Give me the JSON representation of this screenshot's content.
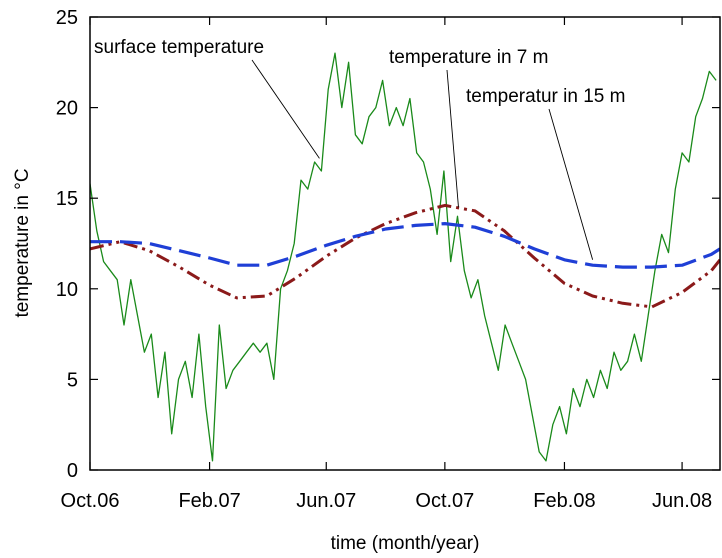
{
  "chart_data": {
    "type": "line",
    "xlabel": "time (month/year)",
    "ylabel": "temperature in °C",
    "xlim": [
      "2006-10-01",
      "2008-07-10"
    ],
    "ylim": [
      0,
      25
    ],
    "x_tick_values": [
      "2006-10-01",
      "2007-02-01",
      "2007-06-01",
      "2007-10-01",
      "2008-02-01",
      "2008-06-01"
    ],
    "x_tick_labels": [
      "Oct.06",
      "Feb.07",
      "Jun.07",
      "Oct.07",
      "Feb.08",
      "Jun.08"
    ],
    "y_ticks": [
      0,
      5,
      10,
      15,
      20,
      25
    ],
    "grid": false,
    "legend": "none",
    "series": [
      {
        "name": "surface temperature",
        "color": "#1a8a1a",
        "style": "solid",
        "x": [
          "2006-10-01",
          "2006-10-08",
          "2006-10-15",
          "2006-10-22",
          "2006-10-29",
          "2006-11-05",
          "2006-11-12",
          "2006-11-19",
          "2006-11-26",
          "2006-12-03",
          "2006-12-10",
          "2006-12-17",
          "2006-12-24",
          "2006-12-31",
          "2007-01-07",
          "2007-01-14",
          "2007-01-21",
          "2007-01-28",
          "2007-02-04",
          "2007-02-11",
          "2007-02-18",
          "2007-02-25",
          "2007-03-04",
          "2007-03-11",
          "2007-03-18",
          "2007-03-25",
          "2007-04-01",
          "2007-04-08",
          "2007-04-15",
          "2007-04-22",
          "2007-04-29",
          "2007-05-06",
          "2007-05-13",
          "2007-05-20",
          "2007-05-27",
          "2007-06-03",
          "2007-06-10",
          "2007-06-17",
          "2007-06-24",
          "2007-07-01",
          "2007-07-08",
          "2007-07-15",
          "2007-07-22",
          "2007-07-29",
          "2007-08-05",
          "2007-08-12",
          "2007-08-19",
          "2007-08-26",
          "2007-09-02",
          "2007-09-09",
          "2007-09-16",
          "2007-09-23",
          "2007-09-30",
          "2007-10-07",
          "2007-10-14",
          "2007-10-21",
          "2007-10-28",
          "2007-11-04",
          "2007-11-11",
          "2007-11-18",
          "2007-11-25",
          "2007-12-02",
          "2007-12-09",
          "2007-12-16",
          "2007-12-23",
          "2007-12-30",
          "2008-01-06",
          "2008-01-13",
          "2008-01-20",
          "2008-01-27",
          "2008-02-03",
          "2008-02-10",
          "2008-02-17",
          "2008-02-24",
          "2008-03-02",
          "2008-03-09",
          "2008-03-16",
          "2008-03-23",
          "2008-03-30",
          "2008-04-06",
          "2008-04-13",
          "2008-04-20",
          "2008-04-27",
          "2008-05-04",
          "2008-05-11",
          "2008-05-18",
          "2008-05-25",
          "2008-06-01",
          "2008-06-08",
          "2008-06-15",
          "2008-06-22",
          "2008-06-29",
          "2008-07-06"
        ],
        "values": [
          15.8,
          13.2,
          11.5,
          11.0,
          10.5,
          8.0,
          10.5,
          8.5,
          6.5,
          7.5,
          4.0,
          6.5,
          2.0,
          5.0,
          6.0,
          4.0,
          7.5,
          3.5,
          0.5,
          8.0,
          4.5,
          5.5,
          6.0,
          6.5,
          7.0,
          6.5,
          7.0,
          5.0,
          10.0,
          11.0,
          12.5,
          16.0,
          15.5,
          17.0,
          16.5,
          21.0,
          23.0,
          20.0,
          22.5,
          18.5,
          18.0,
          19.5,
          20.0,
          21.5,
          19.0,
          20.0,
          19.0,
          20.5,
          17.5,
          17.0,
          15.5,
          13.0,
          16.5,
          11.5,
          14.0,
          11.0,
          9.5,
          10.5,
          8.5,
          7.0,
          5.5,
          8.0,
          7.0,
          6.0,
          5.0,
          3.0,
          1.0,
          0.5,
          2.5,
          3.5,
          2.0,
          4.5,
          3.5,
          5.0,
          4.0,
          5.5,
          4.5,
          6.5,
          5.5,
          6.0,
          7.5,
          6.0,
          8.5,
          11.0,
          13.0,
          12.0,
          15.5,
          17.5,
          17.0,
          19.5,
          20.5,
          22.0,
          21.5
        ]
      },
      {
        "name": "temperature in 7 m",
        "color": "#8b1a1a",
        "style": "dash-dot",
        "x": [
          "2006-10-01",
          "2006-11-01",
          "2006-12-01",
          "2007-01-01",
          "2007-02-01",
          "2007-03-01",
          "2007-04-01",
          "2007-05-01",
          "2007-06-01",
          "2007-07-01",
          "2007-08-01",
          "2007-09-01",
          "2007-10-01",
          "2007-11-01",
          "2007-12-01",
          "2008-01-01",
          "2008-02-01",
          "2008-03-01",
          "2008-04-01",
          "2008-05-01",
          "2008-06-01",
          "2008-07-01",
          "2008-07-10"
        ],
        "values": [
          12.2,
          12.6,
          12.1,
          11.2,
          10.2,
          9.5,
          9.6,
          10.6,
          11.8,
          12.8,
          13.6,
          14.2,
          14.6,
          14.3,
          13.2,
          11.7,
          10.3,
          9.6,
          9.2,
          9.0,
          9.8,
          11.0,
          11.6
        ]
      },
      {
        "name": "temperatur in 15 m",
        "color": "#1f3fd6",
        "style": "dashed",
        "x": [
          "2006-10-01",
          "2006-11-01",
          "2006-12-01",
          "2007-01-01",
          "2007-02-01",
          "2007-03-01",
          "2007-04-01",
          "2007-05-01",
          "2007-06-01",
          "2007-07-01",
          "2007-08-01",
          "2007-09-01",
          "2007-10-01",
          "2007-11-01",
          "2007-12-01",
          "2008-01-01",
          "2008-02-01",
          "2008-03-01",
          "2008-04-01",
          "2008-05-01",
          "2008-06-01",
          "2008-07-01",
          "2008-07-10"
        ],
        "values": [
          12.6,
          12.6,
          12.5,
          12.1,
          11.7,
          11.3,
          11.3,
          11.8,
          12.4,
          12.9,
          13.3,
          13.5,
          13.6,
          13.4,
          12.9,
          12.2,
          11.6,
          11.3,
          11.2,
          11.2,
          11.3,
          11.9,
          12.2
        ]
      }
    ],
    "annotations": [
      {
        "text": "surface temperature",
        "target_x": "2007-05-25",
        "target_y": 17.2
      },
      {
        "text": "temperature in 7 m",
        "target_x": "2007-10-15",
        "target_y": 14.5
      },
      {
        "text": "temperatur in 15 m",
        "target_x": "2008-03-01",
        "target_y": 11.6
      }
    ]
  }
}
